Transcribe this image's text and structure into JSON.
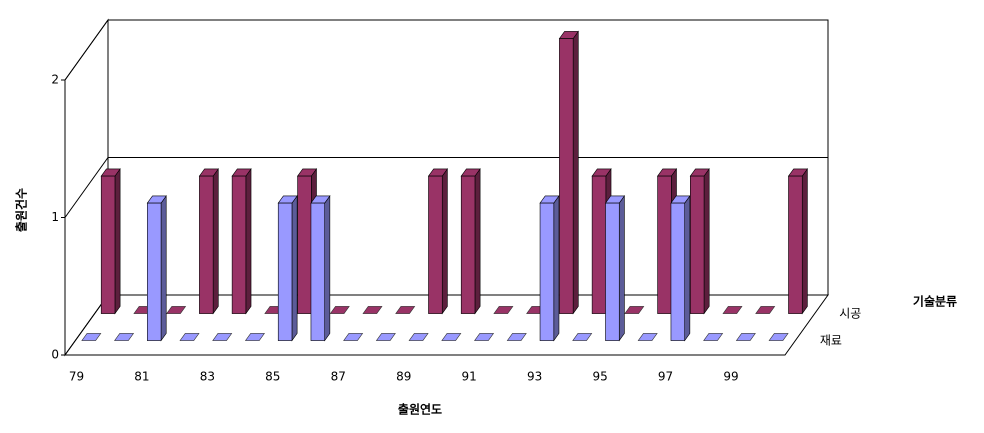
{
  "chart_data": {
    "type": "bar3d",
    "y_label": "출원건수",
    "x_label": "출원연도",
    "legend_title": "기술분류",
    "categories": [
      "79",
      null,
      "81",
      null,
      "83",
      null,
      "85",
      null,
      "87",
      null,
      "89",
      null,
      "91",
      null,
      "93",
      null,
      "95",
      null,
      "97",
      null,
      "99",
      null
    ],
    "series": [
      {
        "name": "시공",
        "color": "#993366",
        "values": [
          1,
          0,
          0,
          1,
          1,
          0,
          1,
          0,
          0,
          0,
          1,
          1,
          0,
          0,
          2,
          1,
          0,
          1,
          1,
          0,
          0,
          1
        ]
      },
      {
        "name": "재료",
        "color": "#9999ff",
        "values": [
          0,
          0,
          1,
          0,
          0,
          0,
          1,
          1,
          0,
          0,
          0,
          0,
          0,
          0,
          1,
          0,
          1,
          0,
          1,
          0,
          0,
          0
        ]
      }
    ],
    "ylim": [
      0,
      2
    ],
    "yticks": [
      0,
      1,
      2
    ],
    "grid": true
  }
}
